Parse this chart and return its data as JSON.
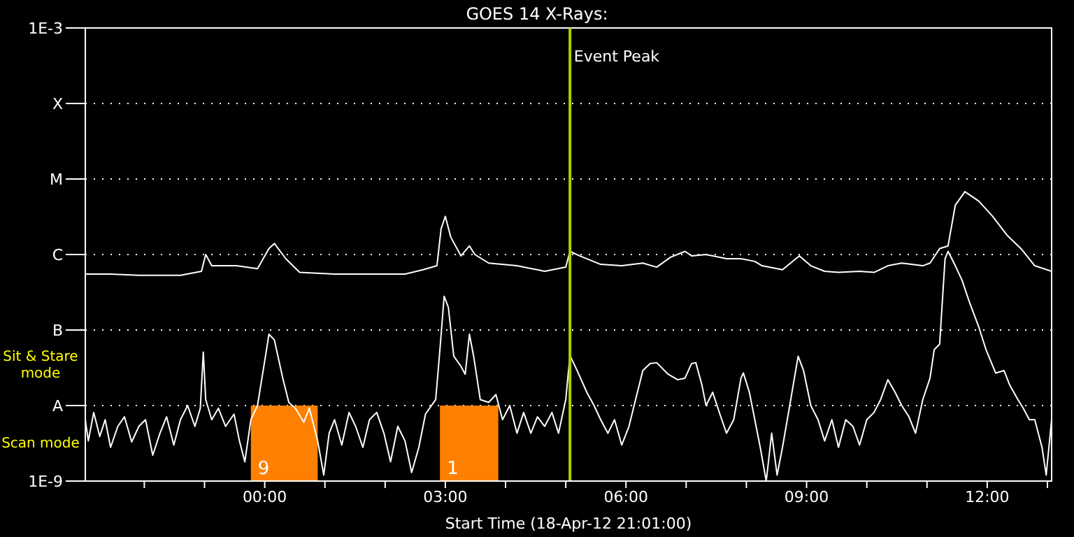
{
  "chart_data": {
    "type": "line",
    "title": "GOES 14 X-Rays:",
    "xlabel": "Start Time (18-Apr-12 21:01:00)",
    "log": true,
    "grid": "y",
    "marker": "none",
    "line_style": "solid",
    "xlim": [
      -2.98,
      13.07
    ],
    "xticks": [
      {
        "value": -2,
        "label": null
      },
      {
        "value": -1,
        "label": null
      },
      {
        "value": 0,
        "label": "00:00"
      },
      {
        "value": 1,
        "label": null
      },
      {
        "value": 2,
        "label": null
      },
      {
        "value": 3,
        "label": "03:00"
      },
      {
        "value": 4,
        "label": null
      },
      {
        "value": 5,
        "label": null
      },
      {
        "value": 6,
        "label": "06:00"
      },
      {
        "value": 7,
        "label": null
      },
      {
        "value": 8,
        "label": null
      },
      {
        "value": 9,
        "label": "09:00"
      },
      {
        "value": 10,
        "label": null
      },
      {
        "value": 11,
        "label": null
      },
      {
        "value": 12,
        "label": "12:00"
      },
      {
        "value": 13,
        "label": null
      }
    ],
    "ylim": [
      1e-09,
      0.001
    ],
    "yticks": [
      {
        "value": 1e-09,
        "label": "1E-9"
      },
      {
        "value": 1e-08,
        "label": "A"
      },
      {
        "value": 1e-07,
        "label": "B"
      },
      {
        "value": 1e-06,
        "label": "C"
      },
      {
        "value": 1e-05,
        "label": "M"
      },
      {
        "value": 0.0001,
        "label": "X"
      },
      {
        "value": 0.001,
        "label": "1E-3"
      }
    ],
    "series": [
      {
        "color": "#ffffff",
        "x": [
          -2.98,
          -2.56,
          -2.09,
          -1.4,
          -1.05,
          -0.98,
          -0.88,
          -0.47,
          -0.12,
          0.07,
          0.16,
          0.35,
          0.58,
          1.16,
          1.63,
          2.33,
          2.63,
          2.86,
          2.93,
          3.0,
          3.09,
          3.26,
          3.4,
          3.49,
          3.72,
          4.19,
          4.65,
          5.0,
          5.07,
          5.23,
          5.58,
          5.93,
          6.28,
          6.51,
          6.74,
          6.98,
          7.09,
          7.33,
          7.67,
          7.91,
          8.14,
          8.26,
          8.6,
          8.79,
          8.88,
          9.07,
          9.3,
          9.53,
          9.88,
          10.12,
          10.35,
          10.58,
          10.93,
          11.05,
          11.21,
          11.35,
          11.47,
          11.63,
          11.86,
          12.09,
          12.33,
          12.56,
          12.79,
          13.07
        ],
        "values": [
          5.5e-07,
          5.5e-07,
          5.3e-07,
          5.3e-07,
          6e-07,
          1e-06,
          7.1e-07,
          7.1e-07,
          6.5e-07,
          1.2e-06,
          1.4e-06,
          8.8e-07,
          5.8e-07,
          5.5e-07,
          5.5e-07,
          5.5e-07,
          6.3e-07,
          7.1e-07,
          2.2e-06,
          3.2e-06,
          1.7e-06,
          9.6e-07,
          1.3e-06,
          1e-06,
          7.7e-07,
          7.1e-07,
          6e-07,
          6.8e-07,
          1.1e-06,
          9.6e-07,
          7.4e-07,
          7.1e-07,
          7.7e-07,
          6.8e-07,
          9.2e-07,
          1.1e-06,
          9.6e-07,
          1e-06,
          8.8e-07,
          8.8e-07,
          8.1e-07,
          7.1e-07,
          6.3e-07,
          8.4e-07,
          9.6e-07,
          7.1e-07,
          6e-07,
          5.8e-07,
          6e-07,
          5.8e-07,
          7.1e-07,
          7.7e-07,
          7.1e-07,
          7.7e-07,
          1.2e-06,
          1.3e-06,
          4.5e-06,
          6.8e-06,
          5.1e-06,
          3.2e-06,
          1.8e-06,
          1.2e-06,
          7.1e-07,
          6e-07
        ]
      },
      {
        "color": "#ffffff",
        "x": [
          -2.98,
          -2.93,
          -2.84,
          -2.74,
          -2.65,
          -2.56,
          -2.44,
          -2.33,
          -2.21,
          -2.09,
          -1.98,
          -1.86,
          -1.74,
          -1.63,
          -1.51,
          -1.4,
          -1.28,
          -1.16,
          -1.07,
          -1.02,
          -0.98,
          -0.88,
          -0.77,
          -0.65,
          -0.51,
          -0.42,
          -0.33,
          -0.23,
          -0.12,
          0.0,
          0.07,
          0.16,
          0.3,
          0.4,
          0.51,
          0.65,
          0.74,
          0.88,
          0.98,
          1.07,
          1.16,
          1.28,
          1.4,
          1.51,
          1.63,
          1.74,
          1.86,
          1.98,
          2.09,
          2.21,
          2.33,
          2.44,
          2.56,
          2.67,
          2.84,
          2.91,
          2.98,
          3.05,
          3.14,
          3.26,
          3.33,
          3.4,
          3.47,
          3.58,
          3.72,
          3.84,
          3.95,
          4.07,
          4.19,
          4.3,
          4.42,
          4.53,
          4.65,
          4.77,
          4.88,
          5.0,
          5.07,
          5.19,
          5.35,
          5.47,
          5.58,
          5.7,
          5.81,
          5.93,
          6.05,
          6.16,
          6.28,
          6.4,
          6.51,
          6.7,
          6.86,
          6.98,
          7.09,
          7.16,
          7.26,
          7.33,
          7.44,
          7.56,
          7.67,
          7.79,
          7.91,
          7.95,
          8.05,
          8.14,
          8.23,
          8.33,
          8.42,
          8.51,
          8.6,
          8.72,
          8.86,
          8.95,
          9.07,
          9.19,
          9.3,
          9.42,
          9.53,
          9.65,
          9.77,
          9.88,
          10.0,
          10.12,
          10.23,
          10.35,
          10.47,
          10.58,
          10.7,
          10.81,
          10.93,
          11.05,
          11.12,
          11.21,
          11.3,
          11.35,
          11.47,
          11.58,
          11.7,
          11.86,
          11.98,
          12.14,
          12.28,
          12.37,
          12.51,
          12.6,
          12.7,
          12.79,
          12.91,
          12.98,
          13.07
        ],
        "values": [
          6.5e-09,
          3.4e-09,
          8.1e-09,
          3.9e-09,
          6.5e-09,
          2.8e-09,
          5.3e-09,
          7.1e-09,
          3.3e-09,
          5.3e-09,
          6.5e-09,
          2.2e-09,
          4.3e-09,
          7.1e-09,
          3e-09,
          6.5e-09,
          1e-08,
          5.3e-09,
          9.2e-09,
          5.1e-08,
          1.2e-08,
          6.5e-09,
          9.2e-09,
          5.3e-09,
          7.7e-09,
          3.4e-09,
          1.8e-09,
          6.5e-09,
          1e-08,
          3.9e-08,
          8.8e-08,
          7.4e-08,
          2.3e-08,
          1.1e-08,
          9.2e-09,
          6e-09,
          9.2e-09,
          3.4e-09,
          1.2e-09,
          4.3e-09,
          6.5e-09,
          3e-09,
          8.1e-09,
          5.3e-09,
          2.8e-09,
          6.5e-09,
          8.1e-09,
          4.3e-09,
          1.8e-09,
          5.3e-09,
          3.4e-09,
          1.3e-09,
          2.8e-09,
          7.7e-09,
          1.2e-08,
          5.5e-08,
          2.8e-07,
          2e-07,
          4.5e-08,
          3.3e-08,
          2.6e-08,
          8.8e-08,
          4.5e-08,
          1.2e-08,
          1.1e-08,
          1.4e-08,
          6.5e-09,
          1e-08,
          4.3e-09,
          8.1e-09,
          4.3e-09,
          7.1e-09,
          5.3e-09,
          8.1e-09,
          4.3e-09,
          1.2e-08,
          4.6e-08,
          2.9e-08,
          1.5e-08,
          1e-08,
          6.5e-09,
          4.3e-09,
          6.5e-09,
          3e-09,
          5.3e-09,
          1.2e-08,
          2.9e-08,
          3.6e-08,
          3.7e-08,
          2.6e-08,
          2.2e-08,
          2.3e-08,
          3.6e-08,
          3.7e-08,
          1.9e-08,
          1e-08,
          1.5e-08,
          7.7e-09,
          4.3e-09,
          6.5e-09,
          2.3e-08,
          2.7e-08,
          1.5e-08,
          6.5e-09,
          2.8e-09,
          1e-09,
          4.3e-09,
          1.2e-09,
          2.8e-09,
          1e-08,
          4.5e-08,
          2.9e-08,
          1e-08,
          6.5e-09,
          3.4e-09,
          6.5e-09,
          2.8e-09,
          6.5e-09,
          5.3e-09,
          3e-09,
          6.5e-09,
          8.1e-09,
          1.2e-08,
          2.2e-08,
          1.5e-08,
          1e-08,
          7.1e-09,
          4.3e-09,
          1.2e-08,
          2.3e-08,
          5.5e-08,
          6.5e-08,
          8.8e-07,
          1.1e-06,
          7.1e-07,
          4.6e-07,
          2.4e-07,
          1.1e-07,
          5.5e-08,
          2.7e-08,
          2.9e-08,
          1.9e-08,
          1.2e-08,
          9.2e-09,
          6.5e-09,
          6.5e-09,
          2.8e-09,
          1.2e-09,
          6.5e-09
        ]
      }
    ],
    "ref_lines": [
      {
        "axis": "x",
        "value": 5.07,
        "label": "Event Peak",
        "color": "#a8d400",
        "line_style": "solid"
      }
    ],
    "bands": [
      {
        "axis": "x",
        "from": -0.23,
        "to": 0.88,
        "label": "9",
        "color": "#ff8000"
      },
      {
        "axis": "x",
        "from": 2.91,
        "to": 3.88,
        "label": "1",
        "color": "#ff8000"
      }
    ],
    "annotations": [
      "Sit & Stare mode",
      "Scan mode"
    ]
  }
}
